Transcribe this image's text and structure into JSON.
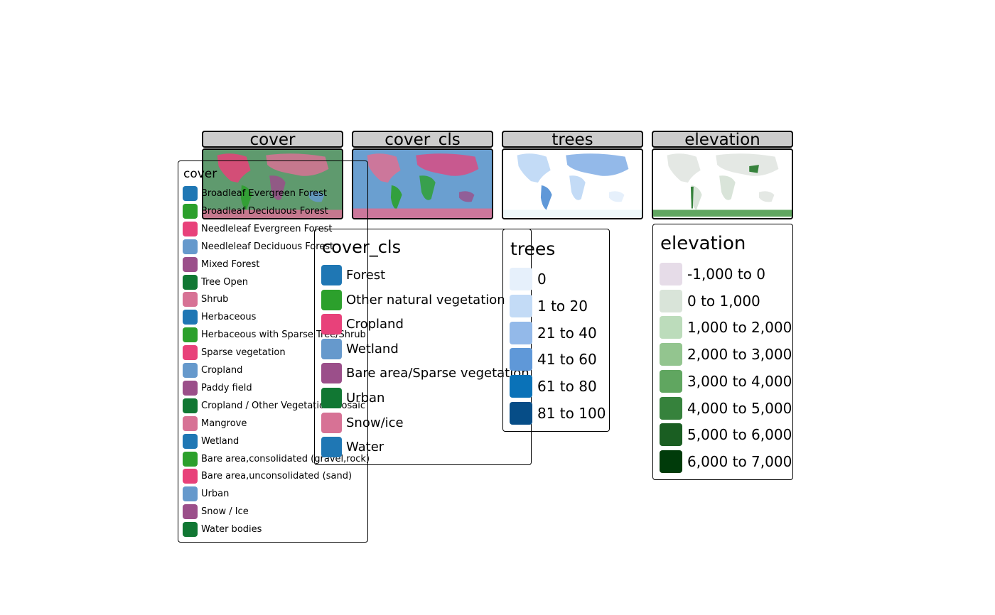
{
  "panels": [
    {
      "title": "cover",
      "fill": "#5f9a6e"
    },
    {
      "title": "cover_cls",
      "fill": "#6a9fd0"
    },
    {
      "title": "trees",
      "fill": "#ffffff"
    },
    {
      "title": "elevation",
      "fill": "#ffffff"
    }
  ],
  "legends": {
    "cover": {
      "title": "cover",
      "items": [
        {
          "label": "Broadleaf Evergreen Forest",
          "color": "#1f77b4"
        },
        {
          "label": "Broadleaf Deciduous Forest",
          "color": "#2ca02c"
        },
        {
          "label": "Needleleaf Evergreen Forest",
          "color": "#e8417a"
        },
        {
          "label": "Needleleaf Deciduous Forest",
          "color": "#6699cc"
        },
        {
          "label": "Mixed Forest",
          "color": "#9b4f8a"
        },
        {
          "label": "Tree Open",
          "color": "#117733"
        },
        {
          "label": "Shrub",
          "color": "#d77295"
        },
        {
          "label": "Herbaceous",
          "color": "#1f77b4"
        },
        {
          "label": "Herbaceous with Sparse Tree/Shrub",
          "color": "#2ca02c"
        },
        {
          "label": "Sparse vegetation",
          "color": "#e8417a"
        },
        {
          "label": "Cropland",
          "color": "#6699cc"
        },
        {
          "label": "Paddy field",
          "color": "#9b4f8a"
        },
        {
          "label": "Cropland / Other Vegetation Mosaic",
          "color": "#117733"
        },
        {
          "label": "Mangrove",
          "color": "#d77295"
        },
        {
          "label": "Wetland",
          "color": "#1f77b4"
        },
        {
          "label": "Bare area,consolidated (gravel,rock)",
          "color": "#2ca02c"
        },
        {
          "label": "Bare area,unconsolidated (sand)",
          "color": "#e8417a"
        },
        {
          "label": "Urban",
          "color": "#6699cc"
        },
        {
          "label": "Snow / Ice",
          "color": "#9b4f8a"
        },
        {
          "label": "Water bodies",
          "color": "#117733"
        }
      ]
    },
    "cover_cls": {
      "title": "cover_cls",
      "items": [
        {
          "label": "Forest",
          "color": "#1f77b4"
        },
        {
          "label": "Other natural vegetation",
          "color": "#2ca02c"
        },
        {
          "label": "Cropland",
          "color": "#e8417a"
        },
        {
          "label": "Wetland",
          "color": "#6699cc"
        },
        {
          "label": "Bare area/Sparse vegetation",
          "color": "#9b4f8a"
        },
        {
          "label": "Urban",
          "color": "#117733"
        },
        {
          "label": "Snow/ice",
          "color": "#d77295"
        },
        {
          "label": "Water",
          "color": "#1f77b4"
        }
      ]
    },
    "trees": {
      "title": "trees",
      "items": [
        {
          "label": "0",
          "color": "#e6f0fb"
        },
        {
          "label": "1 to 20",
          "color": "#c3dbf6"
        },
        {
          "label": "21 to 40",
          "color": "#93b9e9"
        },
        {
          "label": "41 to 60",
          "color": "#5f98d8"
        },
        {
          "label": "61 to 80",
          "color": "#0a72b8"
        },
        {
          "label": "81 to 100",
          "color": "#064d87"
        }
      ]
    },
    "elevation": {
      "title": "elevation",
      "items": [
        {
          "label": "-1,000 to 0",
          "color": "#e6dce8"
        },
        {
          "label": "0 to 1,000",
          "color": "#d9e4d9"
        },
        {
          "label": "1,000 to 2,000",
          "color": "#bcdcbb"
        },
        {
          "label": "2,000 to 3,000",
          "color": "#93c58f"
        },
        {
          "label": "3,000 to 4,000",
          "color": "#60a660"
        },
        {
          "label": "4,000 to 5,000",
          "color": "#36823c"
        },
        {
          "label": "5,000 to 6,000",
          "color": "#1a5e22"
        },
        {
          "label": "6,000 to 7,000",
          "color": "#003b0a"
        }
      ]
    }
  }
}
